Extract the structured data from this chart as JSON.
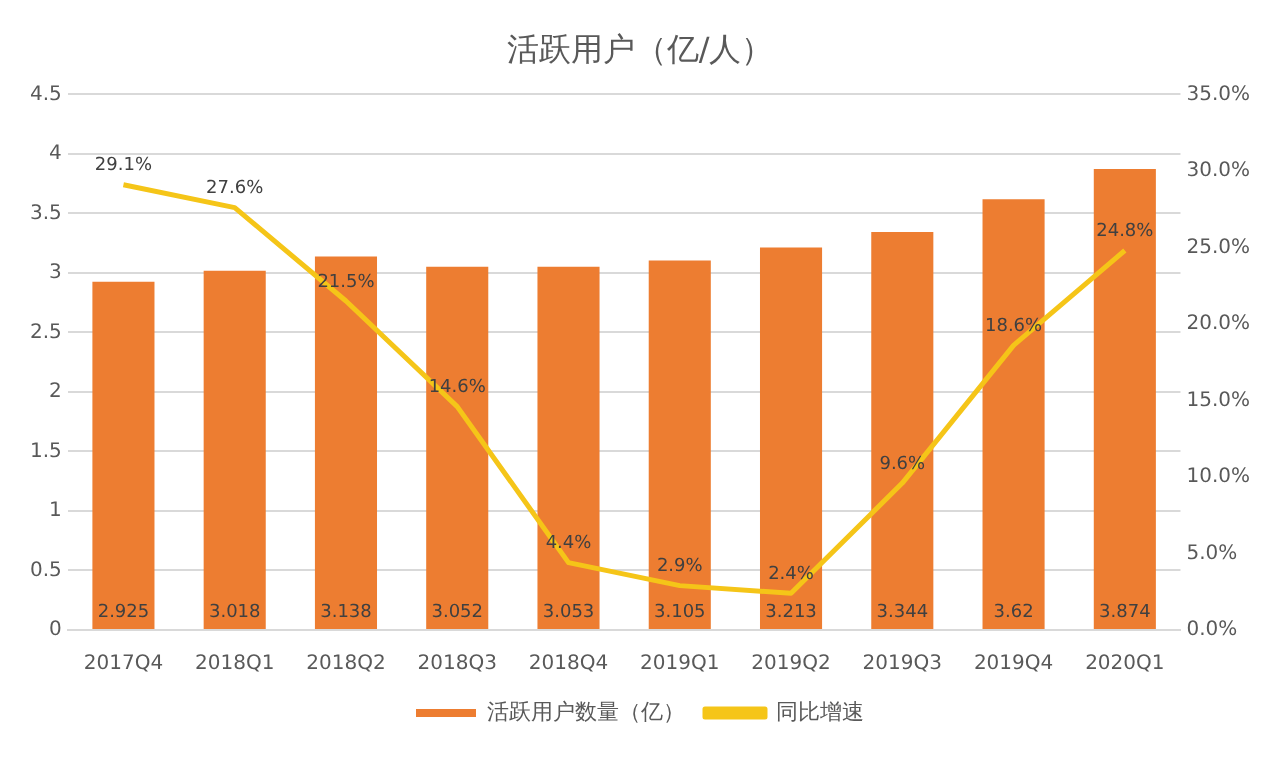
{
  "chart_data": {
    "type": "bar",
    "title": "活跃用户（亿/人）",
    "categories": [
      "2017Q4",
      "2018Q1",
      "2018Q2",
      "2018Q3",
      "2018Q4",
      "2019Q1",
      "2019Q2",
      "2019Q3",
      "2019Q4",
      "2020Q1"
    ],
    "series": [
      {
        "name": "活跃用户数量（亿）",
        "color": "#ed7d31",
        "values": [
          2.925,
          3.018,
          3.138,
          3.052,
          3.053,
          3.105,
          3.213,
          3.344,
          3.62,
          3.874
        ],
        "value_labels": [
          "2.925",
          "3.018",
          "3.138",
          "3.052",
          "3.053",
          "3.105",
          "3.213",
          "3.344",
          "3.62",
          "3.874"
        ]
      },
      {
        "name": "同比增速",
        "type": "line",
        "axis": "y2",
        "color": "#f5c518",
        "values": [
          29.1,
          27.6,
          21.5,
          14.6,
          4.4,
          2.9,
          2.4,
          9.6,
          18.6,
          24.8
        ],
        "value_labels": [
          "29.1%",
          "27.6%",
          "21.5%",
          "14.6%",
          "4.4%",
          "2.9%",
          "2.4%",
          "9.6%",
          "18.6%",
          "24.8%"
        ]
      }
    ],
    "ylim": [
      0,
      4.5
    ],
    "yticks": [
      0,
      0.5,
      1,
      1.5,
      2,
      2.5,
      3,
      3.5,
      4,
      4.5
    ],
    "y2lim": [
      0,
      35
    ],
    "y2ticks": [
      {
        "value": 0,
        "label": "0.0%"
      },
      {
        "value": 5,
        "label": "5.0%"
      },
      {
        "value": 10,
        "label": "10.0%"
      },
      {
        "value": 15,
        "label": "15.0%"
      },
      {
        "value": 20,
        "label": "20.0%"
      },
      {
        "value": 25,
        "label": "25.0%"
      },
      {
        "value": 30,
        "label": "30.0%"
      },
      {
        "value": 35,
        "label": "35.0%"
      }
    ],
    "grid": "y",
    "legend": "bottom",
    "marker": "none"
  }
}
